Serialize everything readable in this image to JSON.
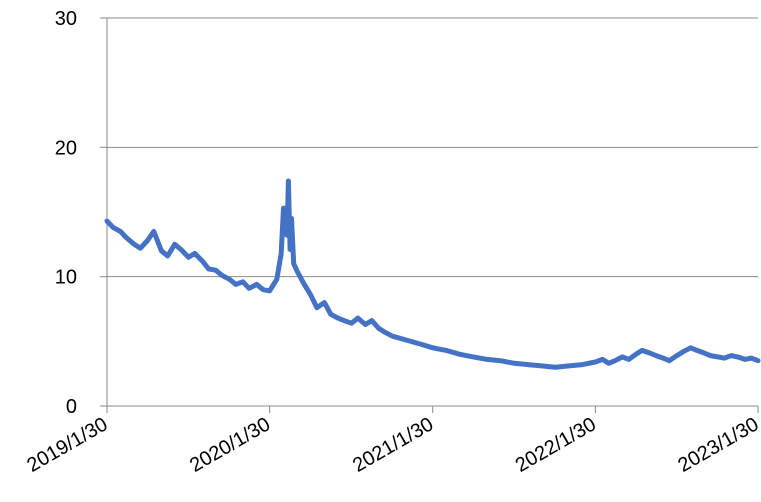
{
  "chart_data": {
    "type": "line",
    "title": "",
    "xlabel": "",
    "ylabel": "",
    "x_tick_labels": [
      "2019/1/30",
      "2020/1/30",
      "2021/1/30",
      "2022/1/30",
      "2023/1/30"
    ],
    "y_tick_labels": [
      "0",
      "10",
      "20",
      "30"
    ],
    "ylim": [
      0,
      30
    ],
    "xlim": [
      "2019/1/30",
      "2023/1/30"
    ],
    "grid": "horizontal",
    "legend": "none",
    "series": [
      {
        "color": "#4472C4",
        "x": [
          "2019/1/30",
          "2019/2/13",
          "2019/3/1",
          "2019/3/15",
          "2019/4/1",
          "2019/4/15",
          "2019/5/1",
          "2019/5/15",
          "2019/6/1",
          "2019/6/15",
          "2019/7/1",
          "2019/7/15",
          "2019/8/1",
          "2019/8/15",
          "2019/9/1",
          "2019/9/15",
          "2019/10/1",
          "2019/10/15",
          "2019/11/1",
          "2019/11/15",
          "2019/12/1",
          "2019/12/15",
          "2020/1/1",
          "2020/1/15",
          "2020/1/30",
          "2020/2/15",
          "2020/2/25",
          "2020/3/1",
          "2020/3/9",
          "2020/3/12",
          "2020/3/16",
          "2020/3/19",
          "2020/3/24",
          "2020/4/1",
          "2020/4/15",
          "2020/5/1",
          "2020/5/15",
          "2020/6/1",
          "2020/6/15",
          "2020/7/1",
          "2020/7/15",
          "2020/8/1",
          "2020/8/15",
          "2020/9/1",
          "2020/9/15",
          "2020/10/1",
          "2020/10/15",
          "2020/11/1",
          "2020/12/1",
          "2021/1/1",
          "2021/1/30",
          "2021/3/1",
          "2021/4/1",
          "2021/5/1",
          "2021/6/1",
          "2021/7/1",
          "2021/8/1",
          "2021/9/1",
          "2021/10/1",
          "2021/11/1",
          "2021/12/1",
          "2022/1/1",
          "2022/1/30",
          "2022/2/15",
          "2022/3/1",
          "2022/3/15",
          "2022/4/1",
          "2022/4/15",
          "2022/5/1",
          "2022/5/15",
          "2022/6/1",
          "2022/6/15",
          "2022/7/1",
          "2022/7/15",
          "2022/8/1",
          "2022/8/15",
          "2022/9/1",
          "2022/9/15",
          "2022/10/1",
          "2022/10/15",
          "2022/11/1",
          "2022/11/15",
          "2022/12/1",
          "2022/12/15",
          "2023/1/1",
          "2023/1/15",
          "2023/1/30"
        ],
        "y": [
          14.3,
          13.8,
          13.5,
          13.0,
          12.5,
          12.2,
          12.8,
          13.5,
          12.0,
          11.6,
          12.5,
          12.1,
          11.5,
          11.8,
          11.2,
          10.6,
          10.5,
          10.1,
          9.8,
          9.4,
          9.6,
          9.1,
          9.4,
          9.0,
          8.9,
          9.8,
          11.8,
          15.3,
          13.2,
          17.4,
          12.1,
          14.5,
          11.0,
          10.4,
          9.5,
          8.6,
          7.6,
          8.0,
          7.1,
          6.8,
          6.6,
          6.4,
          6.8,
          6.3,
          6.6,
          6.0,
          5.7,
          5.4,
          5.1,
          4.8,
          4.5,
          4.3,
          4.0,
          3.8,
          3.6,
          3.5,
          3.3,
          3.2,
          3.1,
          3.0,
          3.1,
          3.2,
          3.4,
          3.6,
          3.3,
          3.5,
          3.8,
          3.6,
          4.0,
          4.3,
          4.1,
          3.9,
          3.7,
          3.5,
          3.9,
          4.2,
          4.5,
          4.3,
          4.1,
          3.9,
          3.8,
          3.7,
          3.9,
          3.8,
          3.6,
          3.7,
          3.5
        ]
      }
    ]
  }
}
